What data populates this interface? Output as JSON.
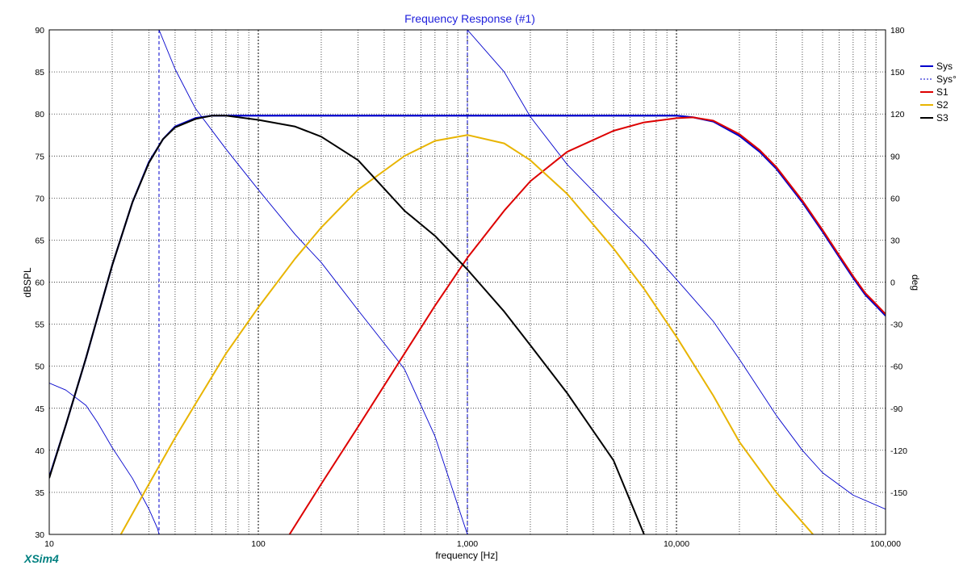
{
  "app": {
    "brand": "XSim4",
    "brand_color": "#008080"
  },
  "chart_data": {
    "type": "line",
    "title": "Frequency Response (#1)",
    "title_color": "#1f1fdc",
    "xlabel": "frequency [Hz]",
    "ylabel": "dBSPL",
    "y2label": "deg",
    "x_scale": "log",
    "xlim": [
      10,
      100000
    ],
    "ylim": [
      30,
      90
    ],
    "y2lim": [
      -180,
      180
    ],
    "x_ticks": [
      {
        "value": 10,
        "label": "10"
      },
      {
        "value": 100,
        "label": "100"
      },
      {
        "value": 1000,
        "label": "1,000"
      },
      {
        "value": 10000,
        "label": "10,000"
      },
      {
        "value": 100000,
        "label": "100,000"
      }
    ],
    "y_ticks": [
      {
        "value": 30,
        "label": "30"
      },
      {
        "value": 35,
        "label": "35"
      },
      {
        "value": 40,
        "label": "40"
      },
      {
        "value": 45,
        "label": "45"
      },
      {
        "value": 50,
        "label": "50"
      },
      {
        "value": 55,
        "label": "55"
      },
      {
        "value": 60,
        "label": "60"
      },
      {
        "value": 65,
        "label": "65"
      },
      {
        "value": 70,
        "label": "70"
      },
      {
        "value": 75,
        "label": "75"
      },
      {
        "value": 80,
        "label": "80"
      },
      {
        "value": 85,
        "label": "85"
      },
      {
        "value": 90,
        "label": "90"
      }
    ],
    "y2_ticks": [
      {
        "value": 180,
        "label": "180"
      },
      {
        "value": 150,
        "label": "150"
      },
      {
        "value": 120,
        "label": "120"
      },
      {
        "value": 90,
        "label": "90"
      },
      {
        "value": 60,
        "label": "60"
      },
      {
        "value": 30,
        "label": "30"
      },
      {
        "value": 0,
        "label": "0"
      },
      {
        "value": -30,
        "label": "-30"
      },
      {
        "value": -60,
        "label": "-60"
      },
      {
        "value": -90,
        "label": "-90"
      },
      {
        "value": -120,
        "label": "-120"
      },
      {
        "value": -150,
        "label": "-150"
      }
    ],
    "grid": true,
    "legend": "right",
    "series": [
      {
        "name": "Sys",
        "color": "#0000cc",
        "style": "solid",
        "axis": "left",
        "points": [
          [
            10,
            36.8
          ],
          [
            12,
            43
          ],
          [
            15,
            51
          ],
          [
            20,
            62
          ],
          [
            25,
            69.5
          ],
          [
            30,
            74.3
          ],
          [
            35,
            77
          ],
          [
            40,
            78.5
          ],
          [
            50,
            79.5
          ],
          [
            60,
            79.8
          ],
          [
            70,
            79.8
          ],
          [
            100,
            79.8
          ],
          [
            1000,
            79.8
          ],
          [
            10000,
            79.8
          ],
          [
            12000,
            79.6
          ],
          [
            15000,
            79.1
          ],
          [
            20000,
            77.4
          ],
          [
            25000,
            75.5
          ],
          [
            30000,
            73.5
          ],
          [
            40000,
            69.5
          ],
          [
            50000,
            66
          ],
          [
            60000,
            63
          ],
          [
            70000,
            60.5
          ],
          [
            80000,
            58.5
          ],
          [
            90000,
            57.2
          ],
          [
            100000,
            56
          ]
        ]
      },
      {
        "name": "Sys°",
        "color": "#0000cc",
        "style": "dashed",
        "axis": "right",
        "points": [
          [
            10,
            -72
          ],
          [
            12,
            -77
          ],
          [
            15,
            -88
          ],
          [
            17,
            -100
          ],
          [
            20,
            -118
          ],
          [
            25,
            -140
          ],
          [
            30,
            -162
          ],
          [
            33,
            -176
          ],
          [
            33.5,
            -180
          ],
          [
            33.5,
            180
          ],
          [
            40,
            152
          ],
          [
            50,
            124
          ],
          [
            70,
            95
          ],
          [
            100,
            66
          ],
          [
            150,
            34
          ],
          [
            200,
            14
          ],
          [
            300,
            -20
          ],
          [
            500,
            -62
          ],
          [
            700,
            -110
          ],
          [
            1000,
            -180
          ],
          [
            1000,
            180
          ],
          [
            1500,
            150
          ],
          [
            2000,
            118
          ],
          [
            3000,
            84
          ],
          [
            5000,
            50
          ],
          [
            7000,
            28
          ],
          [
            10000,
            2
          ],
          [
            15000,
            -28
          ],
          [
            20000,
            -55
          ],
          [
            30000,
            -95
          ],
          [
            40000,
            -120
          ],
          [
            50000,
            -136
          ],
          [
            70000,
            -152
          ],
          [
            100000,
            -162
          ]
        ]
      },
      {
        "name": "S1",
        "color": "#dd0000",
        "style": "solid",
        "axis": "left",
        "points": [
          [
            141,
            30
          ],
          [
            200,
            36
          ],
          [
            300,
            42.8
          ],
          [
            500,
            51.5
          ],
          [
            700,
            57.2
          ],
          [
            1000,
            62.9
          ],
          [
            1500,
            68.5
          ],
          [
            2000,
            72
          ],
          [
            3000,
            75.5
          ],
          [
            5000,
            78
          ],
          [
            7000,
            79
          ],
          [
            10000,
            79.5
          ],
          [
            12000,
            79.6
          ],
          [
            15000,
            79.2
          ],
          [
            20000,
            77.6
          ],
          [
            25000,
            75.7
          ],
          [
            30000,
            73.7
          ],
          [
            40000,
            69.7
          ],
          [
            50000,
            66.2
          ],
          [
            60000,
            63.2
          ],
          [
            70000,
            60.7
          ],
          [
            80000,
            58.7
          ],
          [
            90000,
            57.4
          ],
          [
            100000,
            56.2
          ]
        ]
      },
      {
        "name": "S2",
        "color": "#e8b400",
        "style": "solid",
        "axis": "left",
        "points": [
          [
            22,
            30
          ],
          [
            30,
            36
          ],
          [
            40,
            41.5
          ],
          [
            50,
            45.5
          ],
          [
            70,
            51.5
          ],
          [
            100,
            57
          ],
          [
            150,
            62.8
          ],
          [
            200,
            66.5
          ],
          [
            300,
            71
          ],
          [
            500,
            75
          ],
          [
            700,
            76.8
          ],
          [
            1000,
            77.5
          ],
          [
            1500,
            76.5
          ],
          [
            2000,
            74.5
          ],
          [
            3000,
            70.5
          ],
          [
            5000,
            64
          ],
          [
            7000,
            59.2
          ],
          [
            10000,
            53.5
          ],
          [
            15000,
            46.5
          ],
          [
            20000,
            41
          ],
          [
            30000,
            35
          ],
          [
            45000,
            30
          ]
        ]
      },
      {
        "name": "S3",
        "color": "#000000",
        "style": "solid",
        "axis": "left",
        "points": [
          [
            10,
            36.7
          ],
          [
            12,
            43
          ],
          [
            15,
            51
          ],
          [
            20,
            62
          ],
          [
            25,
            69.5
          ],
          [
            30,
            74.2
          ],
          [
            35,
            77
          ],
          [
            40,
            78.4
          ],
          [
            50,
            79.4
          ],
          [
            60,
            79.8
          ],
          [
            70,
            79.8
          ],
          [
            100,
            79.3
          ],
          [
            150,
            78.5
          ],
          [
            200,
            77.3
          ],
          [
            300,
            74.5
          ],
          [
            500,
            68.5
          ],
          [
            700,
            65.5
          ],
          [
            1000,
            61.5
          ],
          [
            1500,
            56.5
          ],
          [
            2000,
            52.5
          ],
          [
            3000,
            46.8
          ],
          [
            5000,
            38.8
          ],
          [
            7000,
            30
          ]
        ]
      }
    ]
  }
}
